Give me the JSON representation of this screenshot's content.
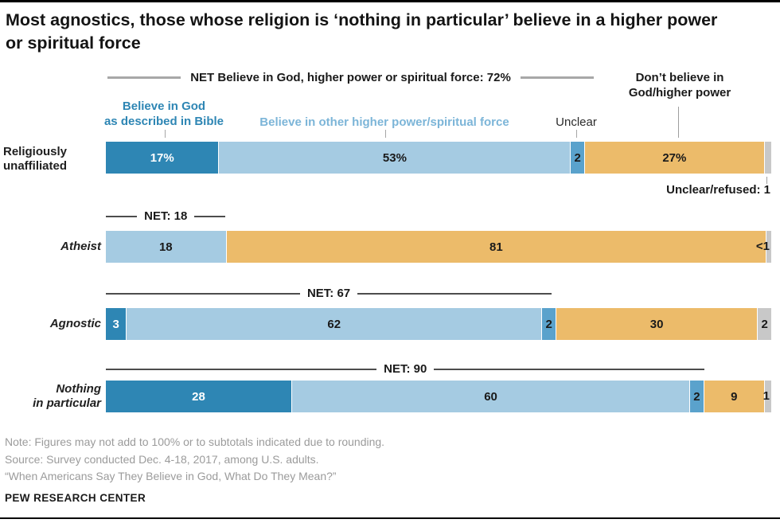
{
  "title": "Most agnostics, those whose religion is ‘nothing in particular’ believe in a higher power or spiritual force",
  "colors": {
    "god_bible": "#2e86b4",
    "higher_power": "#a5cbe2",
    "unclear": "#5aa2cc",
    "dont_believe": "#ecbb6a",
    "unclear_refused": "#c8c8c8"
  },
  "legend": {
    "net_top": "NET Believe in God, higher power or spiritual force: 72%",
    "bible_line1": "Believe in God",
    "bible_line2": "as described in Bible",
    "other": "Believe in other higher power/spiritual force",
    "unclear": "Unclear",
    "dont_line1": "Don’t believe in",
    "dont_line2": "God/higher power",
    "callout": "Unclear/refused: 1"
  },
  "chart_data": {
    "type": "bar",
    "orientation": "horizontal",
    "stacked": true,
    "unit": "percent",
    "xlim": [
      0,
      100
    ],
    "grid": false,
    "series": [
      "Believe in God as described in Bible",
      "Believe in other higher power/spiritual force",
      "Unclear",
      "Don't believe in God/higher power",
      "Unclear/refused"
    ],
    "rows": [
      {
        "category_line1": "Religiously",
        "category_line2": "unaffiliated",
        "net": 72,
        "net_label": "NET Believe in God, higher power or spiritual force: 72%",
        "segments": [
          {
            "series_key": "god_bible",
            "value": 17,
            "label": "17%",
            "text": "white"
          },
          {
            "series_key": "higher_power",
            "value": 53,
            "label": "53%",
            "text": "dark"
          },
          {
            "series_key": "unclear",
            "value": 2,
            "label": "2",
            "text": "dark"
          },
          {
            "series_key": "dont_believe",
            "value": 27,
            "label": "27%",
            "text": "dark"
          },
          {
            "series_key": "unclear_refused",
            "value": 1,
            "label": "",
            "text": "dark"
          }
        ],
        "callout": "Unclear/refused: 1"
      },
      {
        "category_line1": "Atheist",
        "category_line2": "",
        "net": 18,
        "net_label": "NET: 18",
        "segments": [
          {
            "series_key": "higher_power",
            "value": 18,
            "label": "18",
            "text": "dark"
          },
          {
            "series_key": "dont_believe",
            "value": 81,
            "label": "81",
            "text": "dark"
          },
          {
            "series_key": "unclear_refused",
            "value": 0.7,
            "label": "",
            "text": "dark"
          }
        ],
        "outside_label": "<1"
      },
      {
        "category_line1": "Agnostic",
        "category_line2": "",
        "net": 67,
        "net_label": "NET: 67",
        "segments": [
          {
            "series_key": "god_bible",
            "value": 3,
            "label": "3",
            "text": "white"
          },
          {
            "series_key": "higher_power",
            "value": 62,
            "label": "62",
            "text": "dark"
          },
          {
            "series_key": "unclear",
            "value": 2,
            "label": "2",
            "text": "dark"
          },
          {
            "series_key": "dont_believe",
            "value": 30,
            "label": "30",
            "text": "dark"
          },
          {
            "series_key": "unclear_refused",
            "value": 2,
            "label": "2",
            "text": "dark"
          }
        ]
      },
      {
        "category_line1": "Nothing",
        "category_line2": "in particular",
        "net": 90,
        "net_label": "NET: 90",
        "segments": [
          {
            "series_key": "god_bible",
            "value": 28,
            "label": "28",
            "text": "white"
          },
          {
            "series_key": "higher_power",
            "value": 60,
            "label": "60",
            "text": "dark"
          },
          {
            "series_key": "unclear",
            "value": 2,
            "label": "2",
            "text": "dark"
          },
          {
            "series_key": "dont_believe",
            "value": 9,
            "label": "9",
            "text": "dark"
          },
          {
            "series_key": "unclear_refused",
            "value": 1,
            "label": "",
            "text": "dark"
          }
        ],
        "outside_label": "1"
      }
    ]
  },
  "footer": {
    "note": "Note: Figures may not add to 100% or to subtotals indicated due to rounding.",
    "source": "Source: Survey conducted Dec. 4-18, 2017, among U.S. adults.",
    "report": "“When Americans Say They Believe in God, What Do They Mean?”",
    "brand": "PEW RESEARCH CENTER"
  }
}
